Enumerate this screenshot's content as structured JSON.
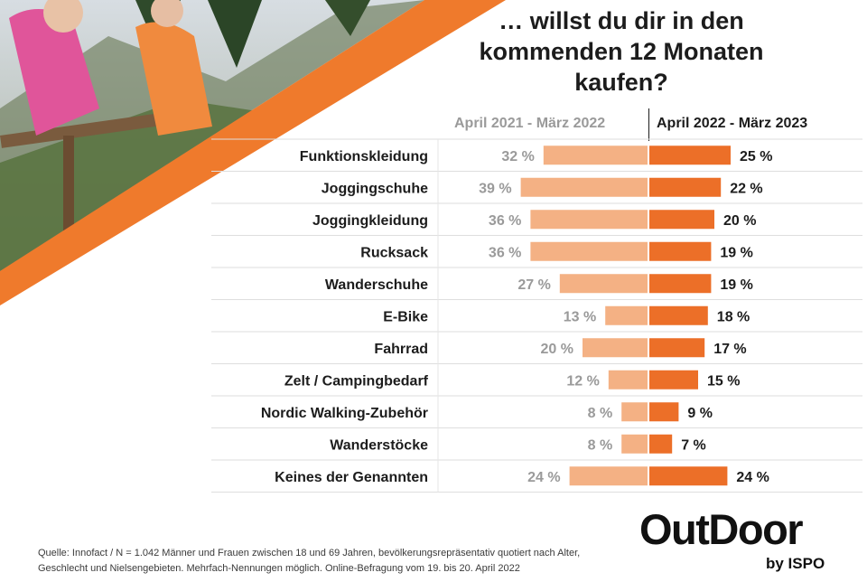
{
  "title": "… willst du dir in den kommenden 12 Monaten kaufen?",
  "colors": {
    "previous": "#f4b184",
    "current": "#ec6f28",
    "band": "#ef7a2c",
    "previous_label": "#9a9a9a",
    "text": "#1c1c1c"
  },
  "chart_data": {
    "type": "bar",
    "orientation": "horizontal",
    "title": "… willst du dir in den kommenden 12 Monaten kaufen?",
    "categories": [
      "Funktionskleidung",
      "Joggingschuhe",
      "Joggingkleidung",
      "Rucksack",
      "Wanderschuhe",
      "E-Bike",
      "Fahrrad",
      "Zelt / Campingbedarf",
      "Nordic Walking-Zubehör",
      "Wanderstöcke",
      "Keines der Genannten"
    ],
    "series": [
      {
        "name": "April 2021 - März 2022",
        "values": [
          32,
          39,
          36,
          36,
          27,
          13,
          20,
          12,
          8,
          8,
          24
        ],
        "labels": [
          "32 %",
          "39 %",
          "36 %",
          "36 %",
          "27 %",
          "13 %",
          "20 %",
          "12 %",
          "8 %",
          "8 %",
          "24 %"
        ]
      },
      {
        "name": "April 2022 - März 2023",
        "values": [
          25,
          22,
          20,
          19,
          19,
          18,
          17,
          15,
          9,
          7,
          24
        ],
        "labels": [
          "25 %",
          "22 %",
          "20 %",
          "19 %",
          "19 %",
          "18 %",
          "17 %",
          "15 %",
          "9 %",
          "7 %",
          "24 %"
        ]
      }
    ]
  },
  "source": {
    "line1": "Quelle: Innofact  /  N = 1.042 Männer und Frauen zwischen 18 und 69 Jahren, bevölkerungsrepräsentativ quotiert nach Alter,",
    "line2": "Geschlecht und Nielsengebieten. Mehrfach-Nennungen möglich. Online-Befragung vom 19. bis 20. April 2022"
  },
  "logo": {
    "main": "OutDoor",
    "sub": "by ISPO"
  }
}
